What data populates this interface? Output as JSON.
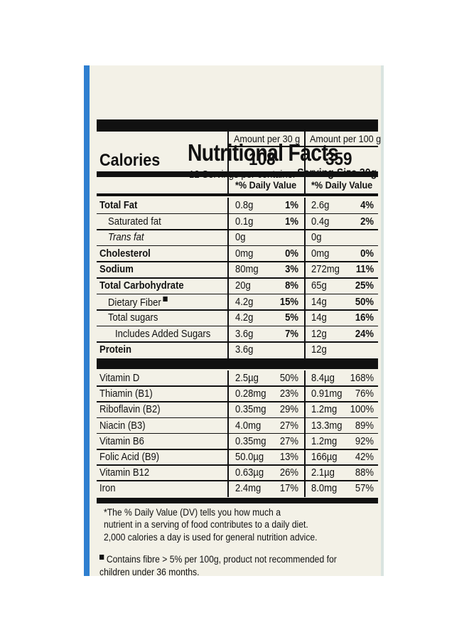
{
  "title": "Nutritional Facts",
  "servings_per_container": "12 Servings per container",
  "serving_size": "Serving Size 30g",
  "columns": {
    "per30": "Amount per 30 g",
    "per100": "Amount per 100 g"
  },
  "calories": {
    "label": "Calories",
    "per30": "108",
    "per100": "359"
  },
  "dv_header": "*% Daily Value",
  "nutrients": [
    {
      "name": "Total Fat",
      "a30": "0.8g",
      "d30": "1%",
      "a100": "2.6g",
      "d100": "4%"
    },
    {
      "name": "Saturated fat",
      "a30": "0.1g",
      "d30": "1%",
      "a100": "0.4g",
      "d100": "2%"
    },
    {
      "name": "Trans fat",
      "a30": "0g",
      "d30": "",
      "a100": "0g",
      "d100": ""
    },
    {
      "name": "Cholesterol",
      "a30": "0mg",
      "d30": "0%",
      "a100": "0mg",
      "d100": "0%"
    },
    {
      "name": "Sodium",
      "a30": "80mg",
      "d30": "3%",
      "a100": "272mg",
      "d100": "11%"
    },
    {
      "name": "Total Carbohydrate",
      "a30": "20g",
      "d30": "8%",
      "a100": "65g",
      "d100": "25%"
    },
    {
      "name": "Dietary Fiber",
      "a30": "4.2g",
      "d30": "15%",
      "a100": "14g",
      "d100": "50%"
    },
    {
      "name": "Total sugars",
      "a30": "4.2g",
      "d30": "5%",
      "a100": "14g",
      "d100": "16%"
    },
    {
      "name": "Includes Added Sugars",
      "a30": "3.6g",
      "d30": "7%",
      "a100": "12g",
      "d100": "24%"
    },
    {
      "name": "Protein",
      "a30": "3.6g",
      "d30": "",
      "a100": "12g",
      "d100": ""
    }
  ],
  "vitamins": [
    {
      "name": "Vitamin D",
      "a30": "2.5µg",
      "d30": "50%",
      "a100": "8.4µg",
      "d100": "168%"
    },
    {
      "name": "Thiamin (B1)",
      "a30": "0.28mg",
      "d30": "23%",
      "a100": "0.91mg",
      "d100": "76%"
    },
    {
      "name": "Riboflavin (B2)",
      "a30": "0.35mg",
      "d30": "29%",
      "a100": "1.2mg",
      "d100": "100%"
    },
    {
      "name": "Niacin (B3)",
      "a30": "4.0mg",
      "d30": "27%",
      "a100": "13.3mg",
      "d100": "89%"
    },
    {
      "name": "Vitamin B6",
      "a30": "0.35mg",
      "d30": "27%",
      "a100": "1.2mg",
      "d100": "92%"
    },
    {
      "name": "Folic Acid (B9)",
      "a30": "50.0µg",
      "d30": "13%",
      "a100": "166µg",
      "d100": "42%"
    },
    {
      "name": "Vitamin B12",
      "a30": "0.63µg",
      "d30": "26%",
      "a100": "2.1µg",
      "d100": "88%"
    },
    {
      "name": "Iron",
      "a30": "2.4mg",
      "d30": "17%",
      "a100": "8.0mg",
      "d100": "57%"
    }
  ],
  "footnote": [
    "*The % Daily Value (DV) tells you how much a",
    "nutrient in a serving of food contributes to a daily diet.",
    "2,000 calories a day is used for general nutrition advice."
  ],
  "fibre_note": [
    "Contains fibre > 5% per 100g, product not recommended for",
    "children under 36 months."
  ],
  "colors": {
    "label_bg": "#f3f1e7",
    "ink": "#111111",
    "package_blue": "#2f7fd0"
  }
}
